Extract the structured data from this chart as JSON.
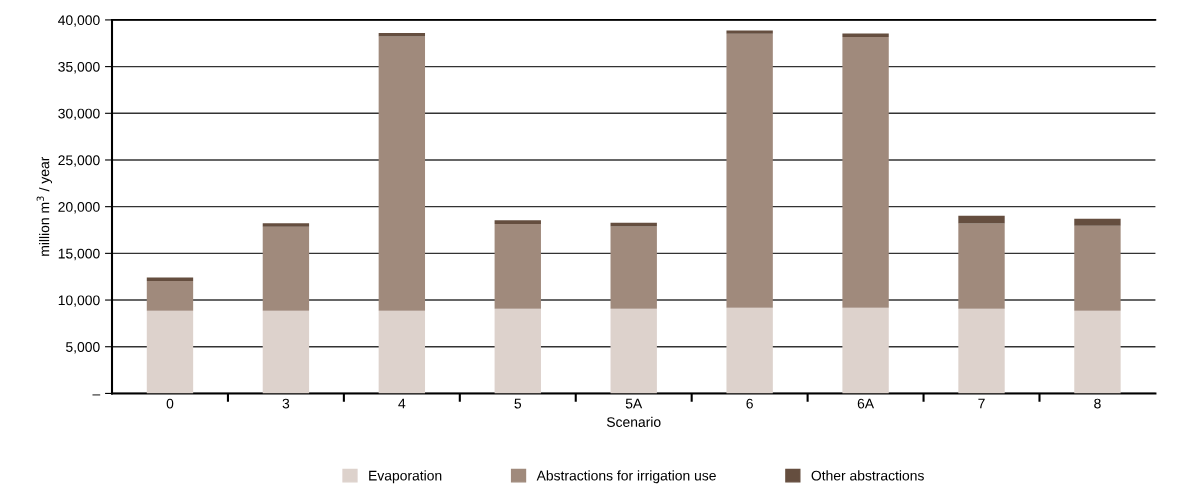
{
  "chart_data": {
    "type": "bar",
    "stacked": true,
    "xlabel": "Scenario",
    "ylabel": "million m$^{3}$ / year",
    "categories": [
      "0",
      "3",
      "4",
      "5",
      "5A",
      "6",
      "6A",
      "7",
      "8"
    ],
    "series": [
      {
        "name": "Evaporation",
        "color": "#ddd2cc",
        "values": [
          8850,
          8850,
          8850,
          9070,
          9060,
          9180,
          9180,
          9060,
          8860
        ]
      },
      {
        "name": "Abstractions for irrigation use",
        "color": "#a08a7c",
        "values": [
          3200,
          9000,
          29370,
          9070,
          8820,
          29330,
          28980,
          9140,
          9100
        ]
      },
      {
        "name": "Other abstractions",
        "color": "#654e3f",
        "values": [
          370,
          370,
          370,
          410,
          395,
          350,
          390,
          820,
          740
        ]
      }
    ],
    "ylim": [
      0,
      40000
    ],
    "yticks": [
      {
        "value": 0,
        "label": "–"
      },
      {
        "value": 5000,
        "label": "5,000"
      },
      {
        "value": 10000,
        "label": "10,000"
      },
      {
        "value": 15000,
        "label": "15,000"
      },
      {
        "value": 20000,
        "label": "20,000"
      },
      {
        "value": 25000,
        "label": "25,000"
      },
      {
        "value": 30000,
        "label": "30,000"
      },
      {
        "value": 35000,
        "label": "35,000"
      },
      {
        "value": 40000,
        "label": "40,000"
      }
    ],
    "grid": "y",
    "legend": "bottom"
  }
}
